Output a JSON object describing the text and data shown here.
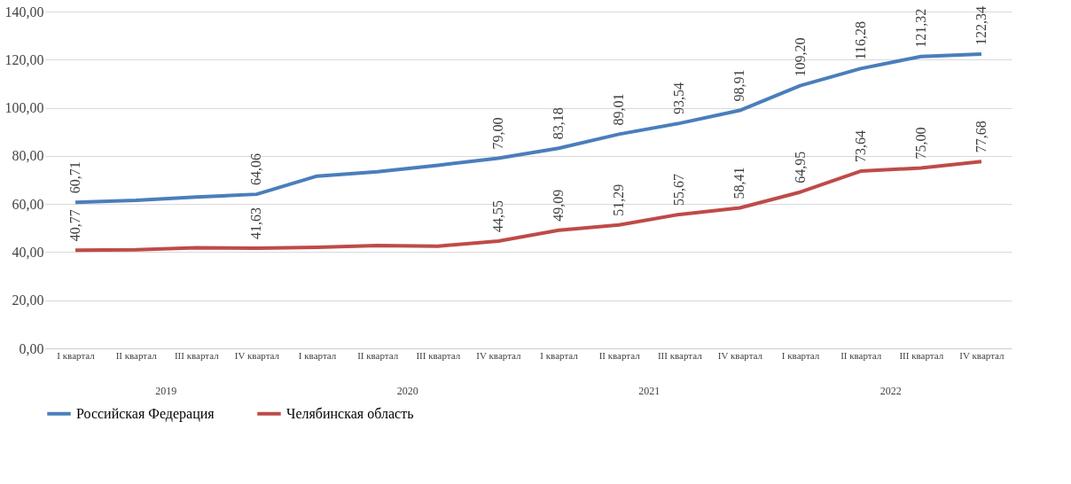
{
  "chart_data": {
    "type": "line",
    "categories": [
      "I квартал",
      "II квартал",
      "III квартал",
      "IV квартал",
      "I квартал",
      "II квартал",
      "III квартал",
      "IV квартал",
      "I квартал",
      "II квартал",
      "III квартал",
      "IV квартал",
      "I квартал",
      "II квартал",
      "III квартал",
      "IV квартал"
    ],
    "series": [
      {
        "name": "Российская Федерация",
        "color": "#4a7ebb",
        "values": [
          60.71,
          61.5,
          62.9,
          64.06,
          71.6,
          73.4,
          76.1,
          79.0,
          83.18,
          89.01,
          93.54,
          98.91,
          109.2,
          116.28,
          121.32,
          122.34
        ],
        "value_labels": [
          "60,71",
          null,
          null,
          "64,06",
          null,
          null,
          null,
          "79,00",
          "83,18",
          "89,01",
          "93,54",
          "98,91",
          "109,20",
          "116,28",
          "121,32",
          "122,34"
        ]
      },
      {
        "name": "Челябинская область",
        "color": "#be4b48",
        "values": [
          40.77,
          41.0,
          41.8,
          41.63,
          42.0,
          42.7,
          42.5,
          44.55,
          49.09,
          51.29,
          55.67,
          58.41,
          64.95,
          73.64,
          75.0,
          77.68
        ],
        "value_labels": [
          "40,77",
          null,
          null,
          "41,63",
          null,
          null,
          null,
          "44,55",
          "49,09",
          "51,29",
          "55,67",
          "58,41",
          "64,95",
          "73,64",
          "75,00",
          "77,68"
        ]
      }
    ],
    "annotations": [
      "2019",
      "2020",
      "2021",
      "2022"
    ],
    "ylim": [
      0,
      140
    ],
    "yticks": [
      {
        "value": 0,
        "label": "0,00"
      },
      {
        "value": 20,
        "label": "20,00"
      },
      {
        "value": 40,
        "label": "40,00"
      },
      {
        "value": 60,
        "label": "60,00"
      },
      {
        "value": 80,
        "label": "80,00"
      },
      {
        "value": 100,
        "label": "100,00"
      },
      {
        "value": 120,
        "label": "120,00"
      },
      {
        "value": 140,
        "label": "140,00"
      }
    ],
    "grid": "y",
    "legend": "bottom",
    "marker": "none",
    "line_style": "solid"
  }
}
